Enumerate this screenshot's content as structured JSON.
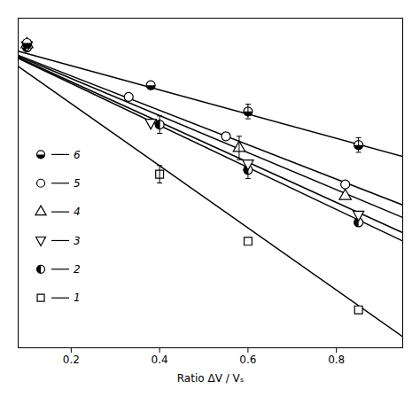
{
  "chart_data": {
    "type": "scatter",
    "xlabel": "Ratio ΔV / Vₛ",
    "xlim": [
      0.08,
      0.95
    ],
    "ylim": [
      -1.05,
      0.08
    ],
    "xticks": [
      0.2,
      0.4,
      0.6,
      0.8
    ],
    "tick_labels": "x",
    "grid": false,
    "legend": "center left",
    "series": [
      {
        "name": "1",
        "marker": "square-open",
        "color": "black",
        "x": [
          0.4,
          0.6,
          0.85
        ],
        "values": [
          -0.455,
          -0.685,
          -0.92
        ],
        "yerr": [
          0.03,
          0.0,
          0.0
        ],
        "fit_slope": -1.065
      },
      {
        "name": "2",
        "marker": "circle-half-left",
        "color": "black",
        "x": [
          0.1,
          0.4,
          0.6,
          0.85
        ],
        "values": [
          -0.02,
          -0.285,
          -0.44,
          -0.62
        ],
        "yerr": [
          0.0,
          0.03,
          0.03,
          0.0
        ],
        "fit_slope": -0.72
      },
      {
        "name": "3",
        "marker": "triangle-down-open",
        "color": "black",
        "x": [
          0.1,
          0.38,
          0.6,
          0.85
        ],
        "values": [
          -0.015,
          -0.28,
          -0.42,
          -0.595
        ],
        "yerr": [
          0.0,
          0.0,
          0.0,
          0.0
        ],
        "fit_slope": -0.69
      },
      {
        "name": "4",
        "marker": "triangle-up-open",
        "color": "black",
        "x": [
          0.1,
          0.58,
          0.82
        ],
        "values": [
          -0.01,
          -0.365,
          -0.53
        ],
        "yerr": [
          0.0,
          0.04,
          0.0
        ],
        "fit_slope": -0.635
      },
      {
        "name": "5",
        "marker": "circle-open",
        "color": "black",
        "x": [
          0.1,
          0.33,
          0.55,
          0.82
        ],
        "values": [
          -0.008,
          -0.19,
          -0.325,
          -0.49
        ],
        "yerr": [
          0.0,
          0.0,
          0.0,
          0.0
        ],
        "fit_slope": -0.59
      },
      {
        "name": "6",
        "marker": "circle-half-bottom",
        "color": "black",
        "x": [
          0.1,
          0.38,
          0.6,
          0.85
        ],
        "values": [
          -0.005,
          -0.15,
          -0.24,
          -0.355
        ],
        "yerr": [
          0.0,
          0.0,
          0.025,
          0.025
        ],
        "fit_slope": -0.415
      }
    ]
  }
}
